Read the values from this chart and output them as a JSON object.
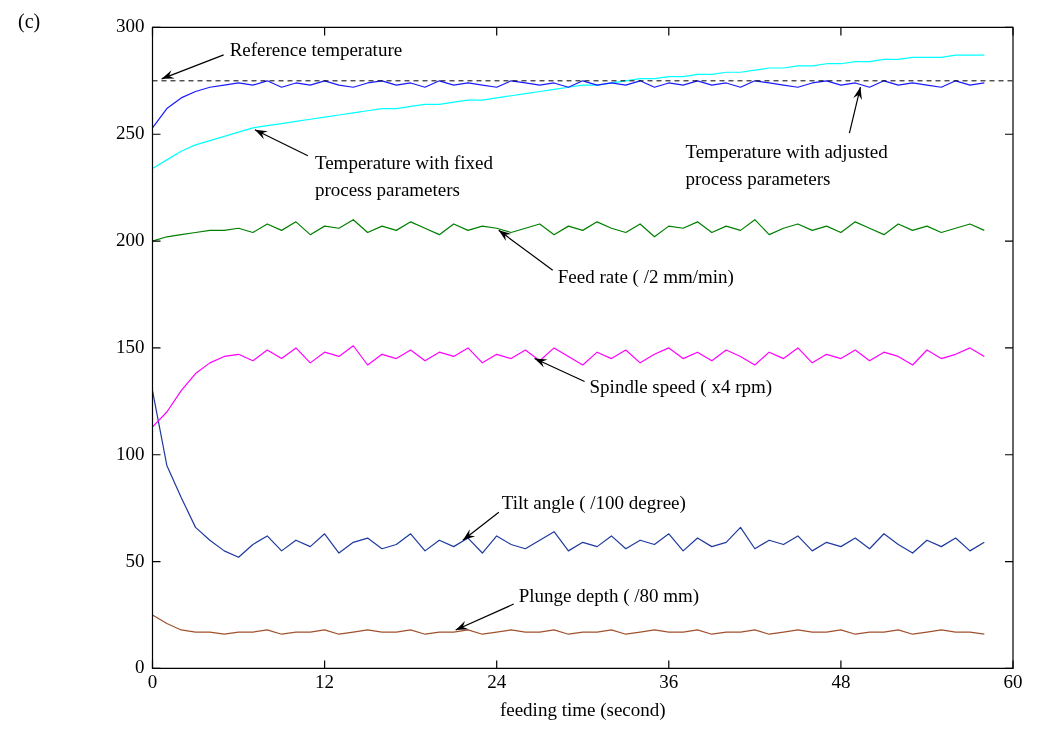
{
  "chart_data": {
    "type": "line",
    "title": "(c)",
    "xlabel": "feeding time (second)",
    "x": [
      0,
      1,
      2,
      3,
      4,
      5,
      6,
      7,
      8,
      9,
      10,
      11,
      12,
      13,
      14,
      15,
      16,
      17,
      18,
      19,
      20,
      21,
      22,
      23,
      24,
      25,
      26,
      27,
      28,
      29,
      30,
      31,
      32,
      33,
      34,
      35,
      36,
      37,
      38,
      39,
      40,
      41,
      42,
      43,
      44,
      45,
      46,
      47,
      48,
      49,
      50,
      51,
      52,
      53,
      54,
      55,
      56,
      57,
      58
    ],
    "xlim": [
      0,
      60
    ],
    "xticks": [
      0,
      12,
      24,
      36,
      48,
      60
    ],
    "ylim": [
      0,
      300
    ],
    "yticks": [
      0,
      50,
      100,
      150,
      200,
      250,
      300
    ],
    "grid": false,
    "legend": false,
    "marker": "none",
    "line_style": "solid",
    "series": [
      {
        "color": "#1a1aff",
        "values": [
          253,
          262,
          267,
          270,
          272,
          273,
          274,
          273,
          275,
          272,
          274,
          273,
          275,
          273,
          272,
          274,
          275,
          273,
          274,
          272,
          275,
          273,
          274,
          273,
          272,
          275,
          274,
          273,
          274,
          272,
          275,
          273,
          274,
          273,
          275,
          272,
          274,
          273,
          275,
          273,
          274,
          272,
          275,
          274,
          273,
          272,
          274,
          275,
          273,
          274,
          272,
          275,
          273,
          274,
          273,
          272,
          275,
          273,
          274
        ]
      },
      {
        "color": "#00ffff",
        "values": [
          234,
          238,
          242,
          245,
          247,
          249,
          251,
          253,
          254,
          255,
          256,
          257,
          258,
          259,
          260,
          261,
          262,
          262,
          263,
          264,
          264,
          265,
          266,
          266,
          267,
          268,
          269,
          270,
          271,
          272,
          273,
          273,
          274,
          275,
          276,
          276,
          277,
          277,
          278,
          278,
          279,
          279,
          280,
          281,
          281,
          282,
          282,
          283,
          283,
          284,
          284,
          285,
          285,
          286,
          286,
          286,
          287,
          287,
          287
        ]
      },
      {
        "color": "#008000",
        "values": [
          200,
          202,
          203,
          204,
          205,
          205,
          206,
          204,
          208,
          205,
          209,
          203,
          207,
          206,
          210,
          204,
          207,
          205,
          209,
          206,
          203,
          208,
          205,
          207,
          206,
          204,
          206,
          208,
          203,
          207,
          205,
          209,
          206,
          204,
          208,
          202,
          207,
          206,
          209,
          204,
          207,
          205,
          210,
          203,
          206,
          208,
          205,
          207,
          204,
          209,
          206,
          203,
          208,
          205,
          207,
          204,
          206,
          208,
          205
        ]
      },
      {
        "color": "#ff00ff",
        "values": [
          113,
          120,
          130,
          138,
          143,
          146,
          147,
          144,
          149,
          145,
          150,
          143,
          148,
          146,
          151,
          142,
          147,
          145,
          149,
          144,
          148,
          146,
          150,
          143,
          147,
          145,
          149,
          144,
          150,
          146,
          142,
          148,
          145,
          149,
          143,
          147,
          150,
          145,
          148,
          144,
          149,
          146,
          142,
          148,
          145,
          150,
          143,
          147,
          145,
          149,
          144,
          148,
          146,
          142,
          149,
          145,
          147,
          150,
          146
        ]
      },
      {
        "color": "#1f3a9e",
        "values": [
          130,
          95,
          80,
          66,
          60,
          55,
          52,
          58,
          62,
          55,
          60,
          57,
          63,
          54,
          59,
          61,
          56,
          58,
          63,
          55,
          60,
          57,
          61,
          54,
          62,
          58,
          56,
          60,
          64,
          55,
          59,
          57,
          62,
          56,
          60,
          58,
          63,
          55,
          61,
          57,
          59,
          66,
          56,
          60,
          58,
          62,
          55,
          59,
          57,
          61,
          56,
          63,
          58,
          54,
          60,
          57,
          61,
          55,
          59
        ]
      },
      {
        "color": "#a0522d",
        "values": [
          25,
          21,
          18,
          17,
          17,
          16,
          17,
          17,
          18,
          16,
          17,
          17,
          18,
          16,
          17,
          18,
          17,
          17,
          18,
          16,
          17,
          17,
          18,
          16,
          17,
          18,
          17,
          17,
          18,
          16,
          17,
          17,
          18,
          16,
          17,
          18,
          17,
          17,
          18,
          16,
          17,
          17,
          18,
          16,
          17,
          18,
          17,
          17,
          18,
          16,
          17,
          17,
          18,
          16,
          17,
          18,
          17,
          17,
          16
        ]
      }
    ],
    "ref_lines": [
      {
        "axis": "y",
        "value": 275,
        "color": "#000000",
        "line_style": "dashed"
      }
    ],
    "annotations": [
      {
        "text": "Reference temperature",
        "x": 0.5,
        "y": 275
      },
      {
        "text": "Temperature with fixed process parameters",
        "x": 7,
        "y": 253
      },
      {
        "text": "Temperature with adjusted process parameters",
        "x": 49.5,
        "y": 273
      },
      {
        "text": "Feed rate ( /2 mm/min)",
        "x": 24,
        "y": 206
      },
      {
        "text": "Spindle speed ( x4 rpm)",
        "x": 26.5,
        "y": 146
      },
      {
        "text": "Tilt angle ( /100 degree)",
        "x": 21.5,
        "y": 59
      },
      {
        "text": "Plunge depth ( /80 mm)",
        "x": 21,
        "y": 17
      }
    ]
  }
}
